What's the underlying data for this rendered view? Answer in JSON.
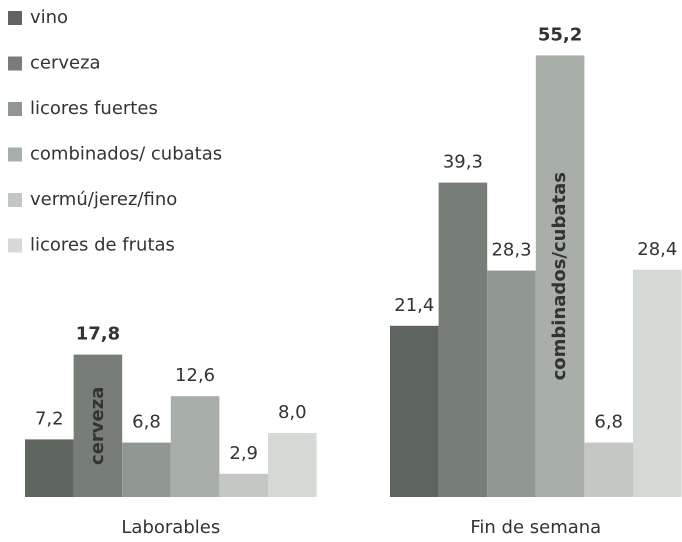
{
  "chart_data": {
    "type": "bar",
    "categories": [
      "Laborables",
      "Fin de semana"
    ],
    "series": [
      {
        "name": "vino",
        "color": "#5e655f",
        "values": [
          7.2,
          21.4
        ],
        "value_labels": [
          "7,2",
          "21,4"
        ]
      },
      {
        "name": "cerveza",
        "color": "#767e77",
        "values": [
          17.8,
          39.3
        ],
        "value_labels": [
          "17,8",
          "39,3"
        ],
        "inner_labels": [
          "cerveza",
          null
        ]
      },
      {
        "name": "licores fuertes",
        "color": "#8f9790",
        "values": [
          6.8,
          28.3
        ],
        "value_labels": [
          "6,8",
          "28,3"
        ]
      },
      {
        "name": "combinados/ cubatas",
        "color": "#a8afa9",
        "values": [
          12.6,
          55.2
        ],
        "value_labels": [
          "12,6",
          "55,2"
        ],
        "inner_labels": [
          null,
          "combinados/cubatas"
        ]
      },
      {
        "name": "vermú/jerez/fino",
        "color": "#c3c8c4",
        "values": [
          2.9,
          6.8
        ],
        "value_labels": [
          "2,9",
          "6,8"
        ]
      },
      {
        "name": "licores de frutas",
        "color": "#d5d9d6",
        "values": [
          8.0,
          28.4
        ],
        "value_labels": [
          "8,0",
          "28,4"
        ]
      }
    ]
  }
}
